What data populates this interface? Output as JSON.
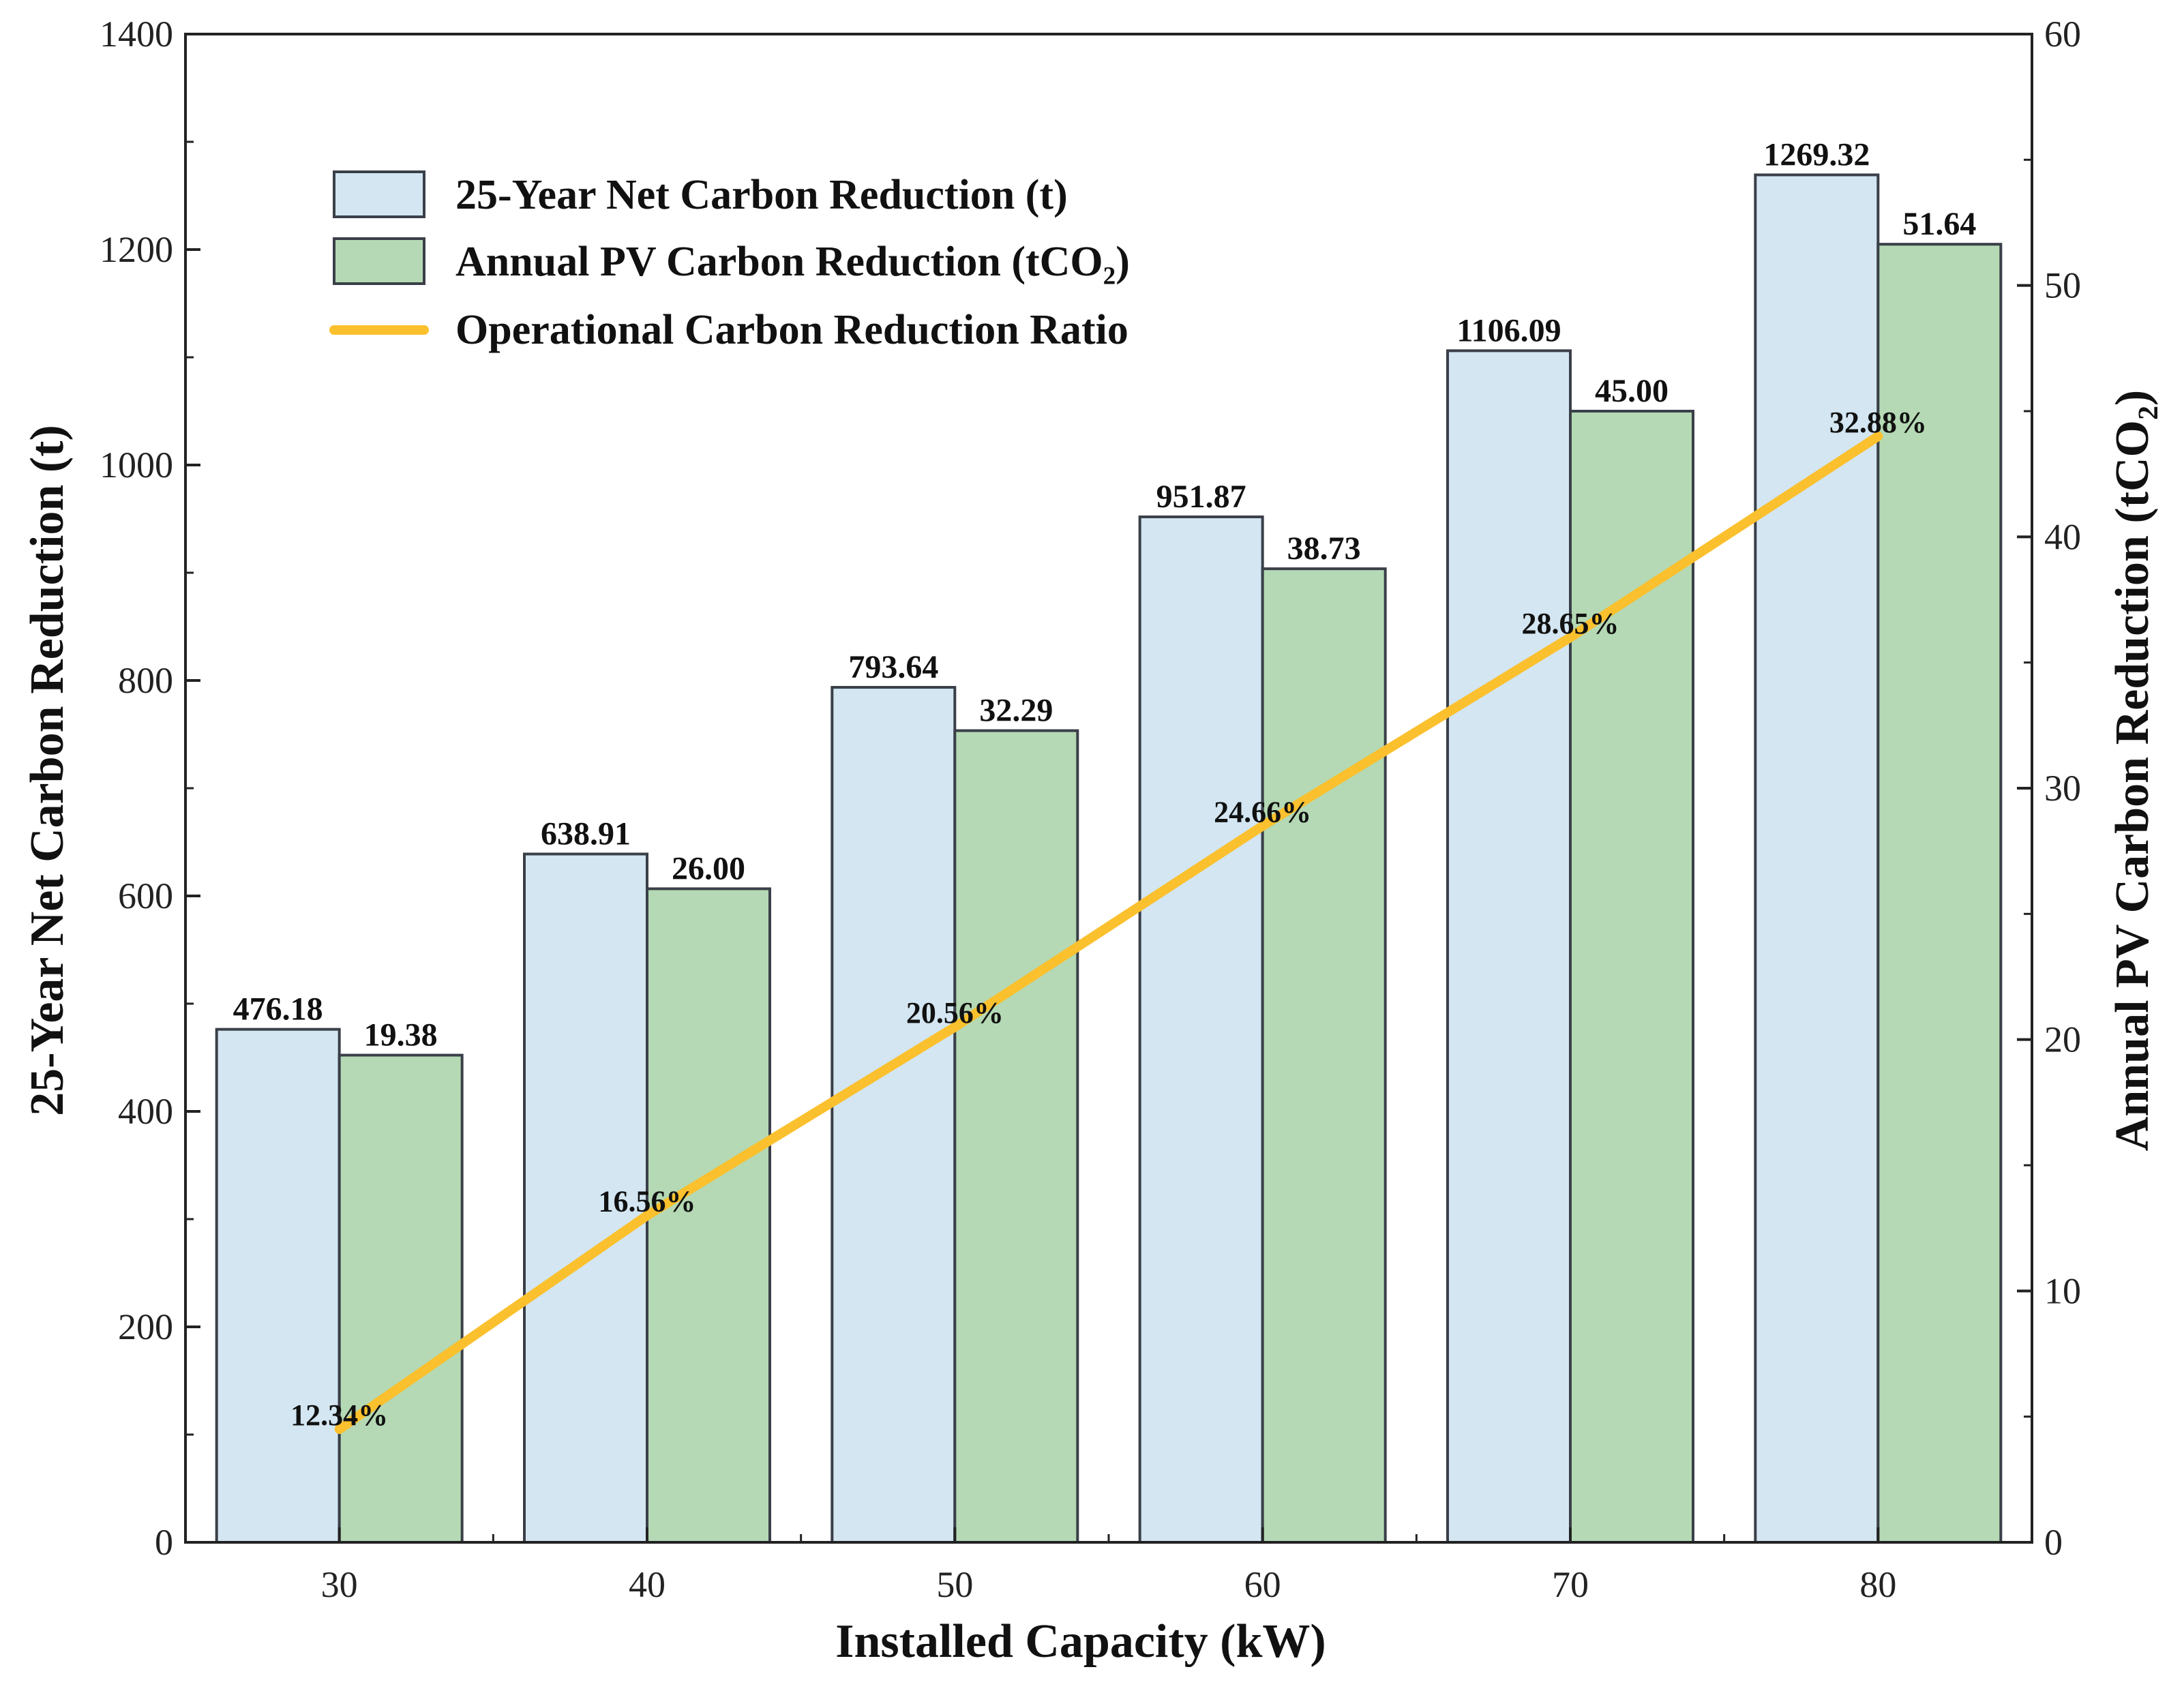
{
  "chart_data": {
    "type": "bar",
    "xlabel": "Installed Capacity (kW)",
    "ylabel": "25-Year Net Carbon Reduction (t)",
    "y2label": "Annual PV Carbon Reduction (tCO₂)",
    "categories": [
      "30",
      "40",
      "50",
      "60",
      "70",
      "80"
    ],
    "ylim": [
      0,
      1400
    ],
    "y_ticks": [
      0,
      200,
      400,
      600,
      800,
      1000,
      1200,
      1400
    ],
    "y2lim": [
      0,
      60
    ],
    "y2_ticks": [
      0,
      10,
      20,
      30,
      40,
      50,
      60
    ],
    "grid": false,
    "legend_position": "top-left",
    "series": [
      {
        "name": "25-Year Net Carbon Reduction (t)",
        "kind": "bar",
        "axis": "left",
        "values": [
          476.18,
          638.91,
          793.64,
          951.87,
          1106.09,
          1269.32
        ],
        "labels": [
          "476.18",
          "638.91",
          "793.64",
          "951.87",
          "1106.09",
          "1269.32"
        ],
        "color": "#d3e6f2"
      },
      {
        "name": "Annual PV Carbon Reduction (tCO₂)",
        "kind": "bar",
        "axis": "right",
        "values": [
          19.38,
          26.0,
          32.29,
          38.73,
          45.0,
          51.64
        ],
        "labels": [
          "19.38",
          "26.00",
          "32.29",
          "38.73",
          "45.00",
          "51.64"
        ],
        "color": "#b4d9b4"
      },
      {
        "name": "Operational Carbon Reduction Ratio",
        "kind": "line",
        "axis": "right",
        "values": [
          12.34,
          16.56,
          20.56,
          24.66,
          28.65,
          32.88
        ],
        "plotted_right_axis_values": [
          4.5,
          13,
          20.5,
          28.5,
          36,
          44
        ],
        "labels": [
          "12.34%",
          "16.56%",
          "20.56%",
          "24.66%",
          "28.65%",
          "32.88%"
        ],
        "color": "#fbc02d"
      }
    ]
  }
}
